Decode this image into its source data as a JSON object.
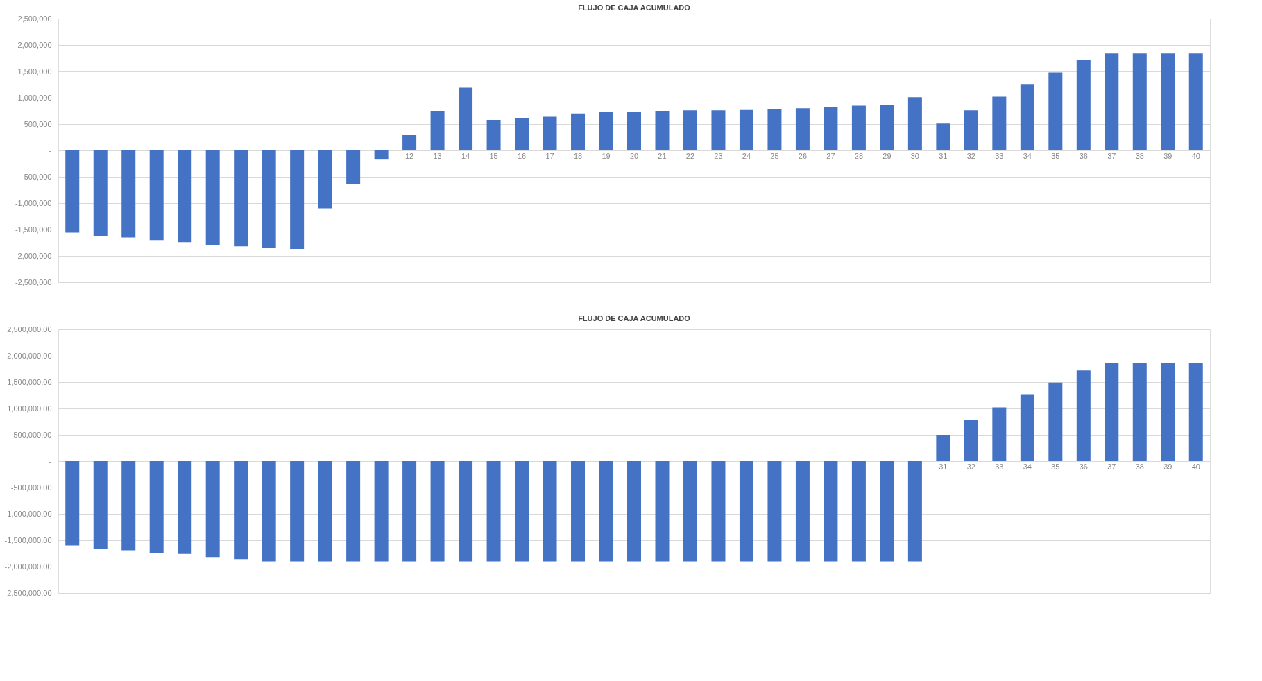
{
  "chart_data": [
    {
      "type": "bar",
      "title": "FLUJO DE CAJA ACUMULADO",
      "categories": [
        null,
        null,
        null,
        null,
        null,
        null,
        null,
        null,
        null,
        null,
        null,
        null,
        "12",
        "13",
        "14",
        "15",
        "16",
        "17",
        "18",
        "19",
        "20",
        "21",
        "22",
        "23",
        "24",
        "25",
        "26",
        "27",
        "28",
        "29",
        "30",
        "31",
        "32",
        "33",
        "34",
        "35",
        "36",
        "37",
        "38",
        "39",
        "40"
      ],
      "series": [
        {
          "color": "#4472c4",
          "values": [
            -1560000,
            -1620000,
            -1650000,
            -1700000,
            -1740000,
            -1790000,
            -1820000,
            -1850000,
            -1870000,
            -1100000,
            -630000,
            -160000,
            300000,
            750000,
            1190000,
            580000,
            620000,
            650000,
            700000,
            730000,
            730000,
            750000,
            760000,
            760000,
            780000,
            790000,
            800000,
            830000,
            850000,
            860000,
            1010000,
            510000,
            760000,
            1020000,
            1260000,
            1480000,
            1710000,
            1840000,
            1840000,
            1840000,
            1840000
          ]
        }
      ],
      "ylim": [
        -2500000,
        2500000
      ],
      "yticks": [
        {
          "value": -2500000,
          "label": "-2,500,000"
        },
        {
          "value": -2000000,
          "label": "-2,000,000"
        },
        {
          "value": -1500000,
          "label": "-1,500,000"
        },
        {
          "value": -1000000,
          "label": "-1,000,000"
        },
        {
          "value": -500000,
          "label": "-500,000"
        },
        {
          "value": 0,
          "label": "-"
        },
        {
          "value": 500000,
          "label": "500,000"
        },
        {
          "value": 1000000,
          "label": "1,000,000"
        },
        {
          "value": 1500000,
          "label": "1,500,000"
        },
        {
          "value": 2000000,
          "label": "2,000,000"
        },
        {
          "value": 2500000,
          "label": "2,500,000"
        }
      ],
      "grid": "y"
    },
    {
      "type": "bar",
      "title": "FLUJO DE CAJA ACUMULADO",
      "categories": [
        null,
        null,
        null,
        null,
        null,
        null,
        null,
        null,
        null,
        null,
        null,
        null,
        null,
        null,
        null,
        null,
        null,
        null,
        null,
        null,
        null,
        null,
        null,
        null,
        null,
        null,
        null,
        null,
        null,
        null,
        null,
        "31",
        "32",
        "33",
        "34",
        "35",
        "36",
        "37",
        "38",
        "39",
        "40"
      ],
      "series": [
        {
          "color": "#4472c4",
          "values": [
            -1600000,
            -1660000,
            -1690000,
            -1740000,
            -1760000,
            -1820000,
            -1860000,
            -1900000,
            -1900000,
            -1900000,
            -1900000,
            -1900000,
            -1900000,
            -1900000,
            -1900000,
            -1900000,
            -1900000,
            -1900000,
            -1900000,
            -1900000,
            -1900000,
            -1900000,
            -1900000,
            -1900000,
            -1900000,
            -1900000,
            -1900000,
            -1900000,
            -1900000,
            -1900000,
            -1900000,
            500000,
            780000,
            1020000,
            1270000,
            1490000,
            1720000,
            1860000,
            1860000,
            1860000,
            1860000
          ]
        }
      ],
      "ylim": [
        -2500000,
        2500000
      ],
      "yticks": [
        {
          "value": -2500000,
          "label": "-2,500,000.00"
        },
        {
          "value": -2000000,
          "label": "-2,000,000.00"
        },
        {
          "value": -1500000,
          "label": "-1,500,000.00"
        },
        {
          "value": -1000000,
          "label": "-1,000,000.00"
        },
        {
          "value": -500000,
          "label": "-500,000.00"
        },
        {
          "value": 0,
          "label": "-"
        },
        {
          "value": 500000,
          "label": "500,000.00"
        },
        {
          "value": 1000000,
          "label": "1,000,000.00"
        },
        {
          "value": 1500000,
          "label": "1,500,000.00"
        },
        {
          "value": 2000000,
          "label": "2,000,000.00"
        },
        {
          "value": 2500000,
          "label": "2,500,000.00"
        }
      ],
      "grid": "y"
    }
  ]
}
